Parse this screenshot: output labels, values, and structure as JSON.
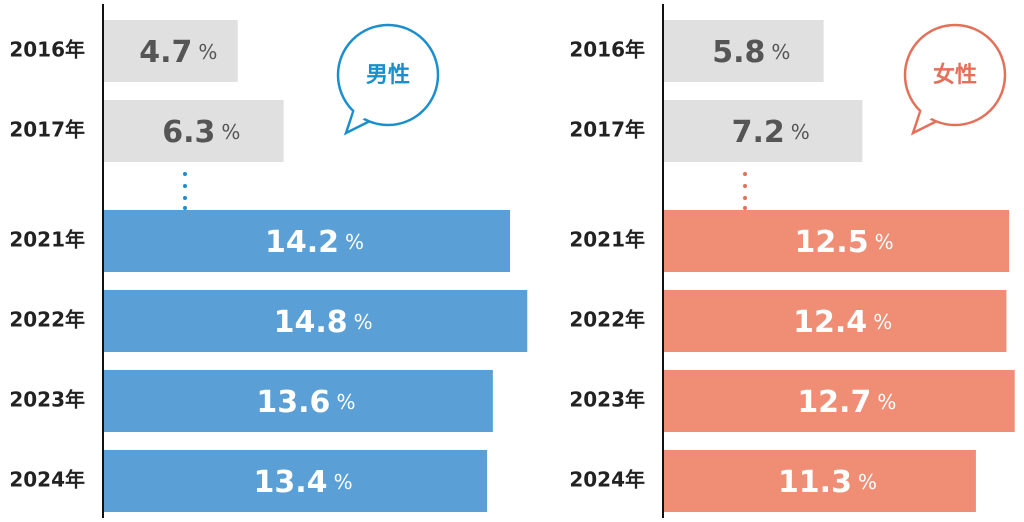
{
  "chart_data": [
    {
      "type": "bar",
      "orientation": "horizontal",
      "categories": [
        "2016年",
        "2017年",
        "2021年",
        "2022年",
        "2023年",
        "2024年"
      ],
      "series": [
        {
          "name": "男性",
          "color": "#1a8fce",
          "colors": [
            "#e0e0e0",
            "#e0e0e0",
            "#5a9fd5",
            "#5a9fd5",
            "#5a9fd5",
            "#5a9fd5"
          ],
          "values": [
            4.7,
            6.3,
            14.2,
            14.8,
            13.6,
            13.4
          ],
          "value_labels": [
            "4.7%",
            "6.3%",
            "14.2%",
            "14.8%",
            "13.6%",
            "13.4%"
          ]
        }
      ],
      "xlim": [
        0,
        15
      ]
    },
    {
      "type": "bar",
      "orientation": "horizontal",
      "categories": [
        "2016年",
        "2017年",
        "2021年",
        "2022年",
        "2023年",
        "2024年"
      ],
      "series": [
        {
          "name": "女性",
          "color": "#e5705a",
          "colors": [
            "#e0e0e0",
            "#e0e0e0",
            "#ef8e74",
            "#ef8e74",
            "#ef8e74",
            "#ef8e74"
          ],
          "values": [
            5.8,
            7.2,
            12.5,
            12.4,
            12.7,
            11.3
          ],
          "value_labels": [
            "5.8%",
            "7.2%",
            "12.5%",
            "12.4%",
            "12.7%",
            "11.3%"
          ]
        }
      ],
      "xlim": [
        0,
        13
      ]
    }
  ]
}
